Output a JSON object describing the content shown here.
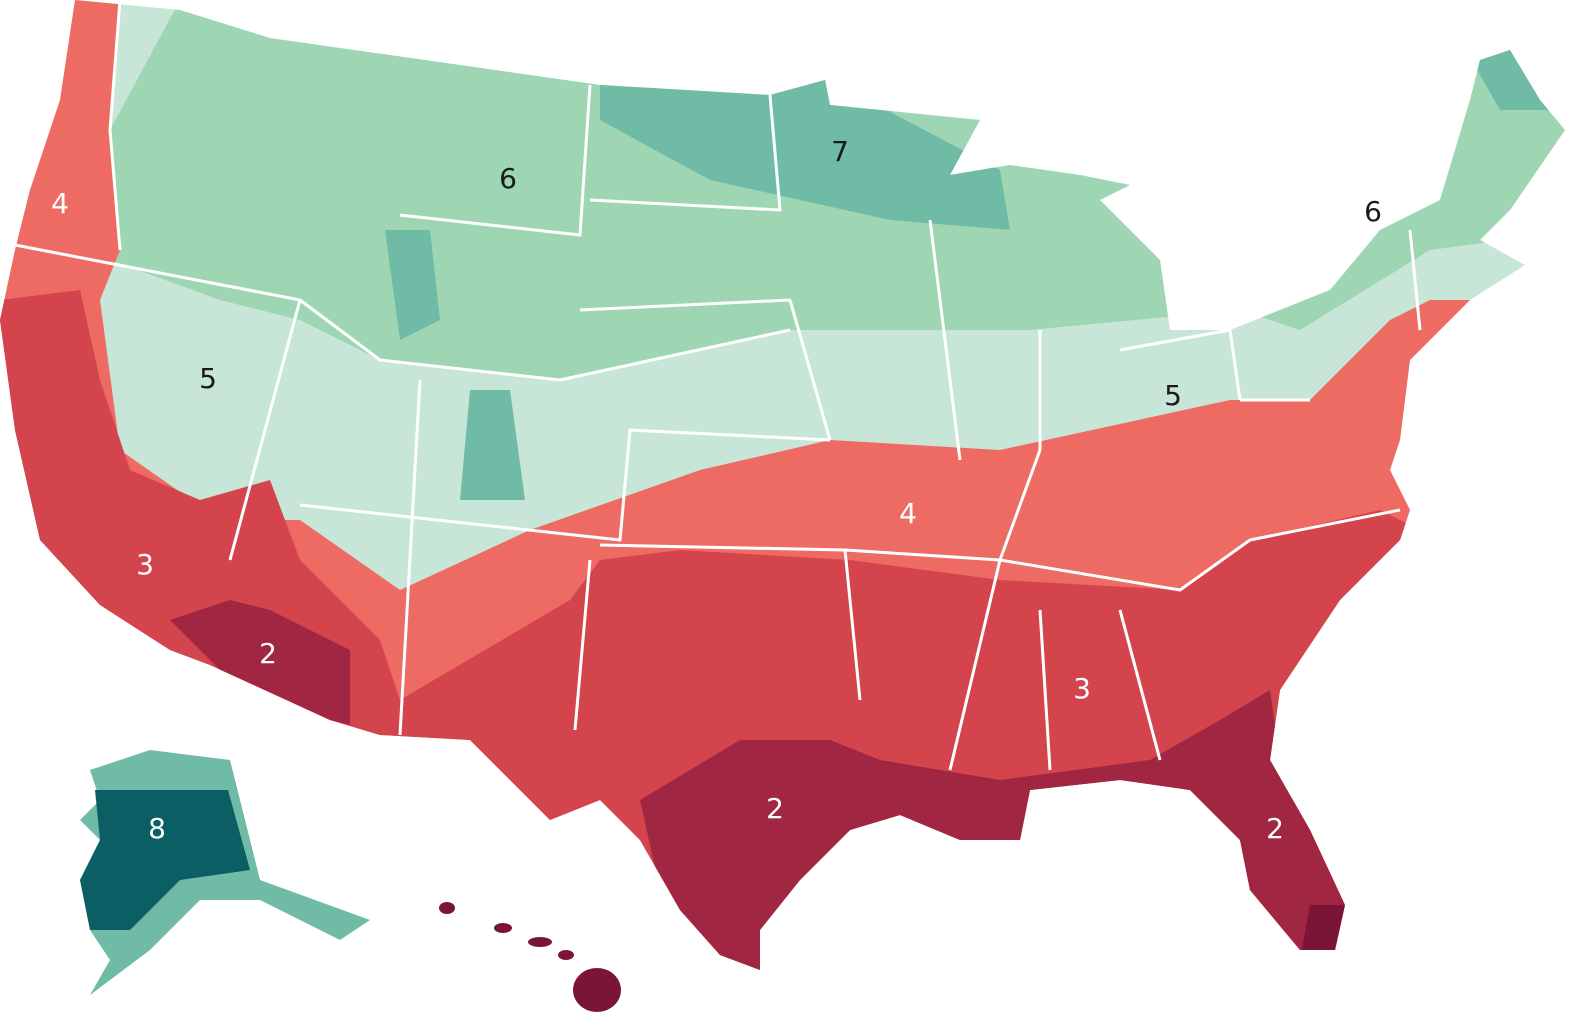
{
  "map": {
    "labels": [
      "4",
      "6",
      "7",
      "6",
      "5",
      "5",
      "3",
      "2",
      "4",
      "3",
      "2",
      "2",
      "8"
    ]
  }
}
